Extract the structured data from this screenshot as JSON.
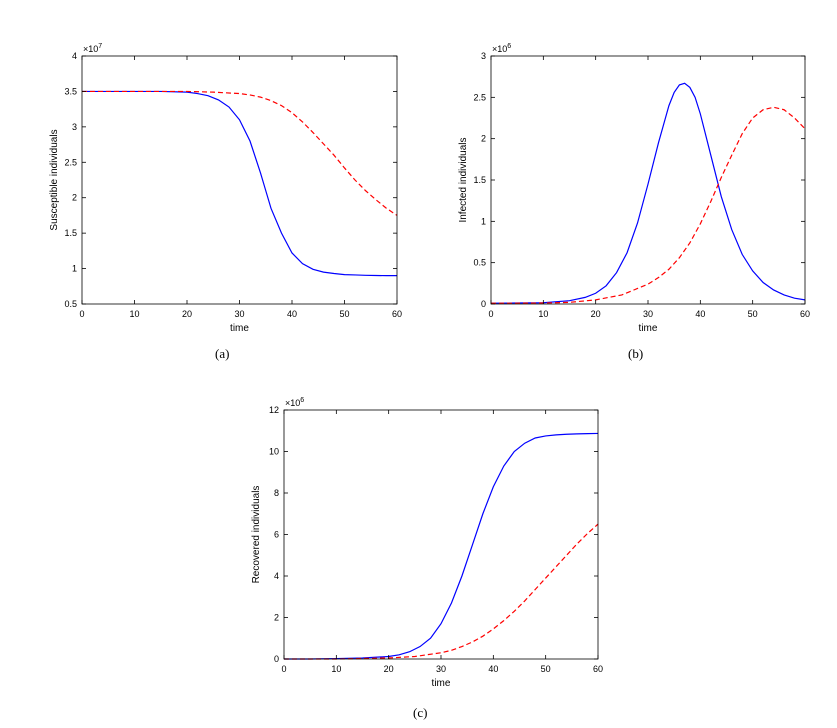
{
  "figures": [
    {
      "caption": "(a)",
      "chart_data": {
        "type": "line",
        "xlabel": "time",
        "ylabel": "Susceptible individuals",
        "exponent_label": "×10",
        "exponent": "7",
        "xlim": [
          0,
          60
        ],
        "ylim": [
          0.5,
          4
        ],
        "xticks": [
          0,
          10,
          20,
          30,
          40,
          50,
          60
        ],
        "yticks": [
          0.5,
          1,
          1.5,
          2,
          2.5,
          3,
          3.5,
          4
        ],
        "ytick_labels": [
          "0.5",
          "1",
          "1.5",
          "2",
          "2.5",
          "3",
          "3.5",
          "4"
        ],
        "grid": false,
        "series": [
          {
            "style": "solid",
            "color": "#0000ff",
            "x": [
              0,
              5,
              10,
              15,
              20,
              22,
              24,
              26,
              28,
              30,
              32,
              34,
              35,
              36,
              38,
              40,
              42,
              44,
              46,
              48,
              50,
              52,
              54,
              56,
              58,
              60
            ],
            "y": [
              3.5,
              3.5,
              3.5,
              3.5,
              3.49,
              3.47,
              3.44,
              3.38,
              3.28,
              3.1,
              2.8,
              2.35,
              2.1,
              1.85,
              1.5,
              1.22,
              1.07,
              0.99,
              0.95,
              0.93,
              0.915,
              0.91,
              0.905,
              0.902,
              0.9,
              0.9
            ]
          },
          {
            "style": "dashed",
            "color": "#ff0000",
            "x": [
              0,
              5,
              10,
              15,
              20,
              25,
              30,
              32,
              34,
              36,
              38,
              40,
              42,
              44,
              46,
              48,
              50,
              52,
              54,
              56,
              58,
              60
            ],
            "y": [
              3.5,
              3.5,
              3.5,
              3.5,
              3.5,
              3.49,
              3.47,
              3.45,
              3.42,
              3.37,
              3.3,
              3.2,
              3.07,
              2.92,
              2.76,
              2.6,
              2.42,
              2.25,
              2.1,
              1.97,
              1.85,
              1.75
            ]
          }
        ]
      }
    },
    {
      "caption": "(b)",
      "chart_data": {
        "type": "line",
        "xlabel": "time",
        "ylabel": "Infected individuals",
        "exponent_label": "×10",
        "exponent": "6",
        "xlim": [
          0,
          60
        ],
        "ylim": [
          0,
          3
        ],
        "xticks": [
          0,
          10,
          20,
          30,
          40,
          50,
          60
        ],
        "yticks": [
          0,
          0.5,
          1,
          1.5,
          2,
          2.5,
          3
        ],
        "ytick_labels": [
          "0",
          "0.5",
          "1",
          "1.5",
          "2",
          "2.5",
          "3"
        ],
        "grid": false,
        "series": [
          {
            "style": "solid",
            "color": "#0000ff",
            "x": [
              0,
              5,
              10,
              15,
              18,
              20,
              22,
              24,
              26,
              28,
              30,
              32,
              34,
              35,
              36,
              37,
              38,
              39,
              40,
              42,
              44,
              46,
              48,
              50,
              52,
              54,
              56,
              58,
              60
            ],
            "y": [
              0.01,
              0.012,
              0.015,
              0.04,
              0.08,
              0.13,
              0.22,
              0.38,
              0.62,
              0.98,
              1.45,
              1.95,
              2.4,
              2.56,
              2.65,
              2.67,
              2.62,
              2.5,
              2.3,
              1.8,
              1.3,
              0.9,
              0.6,
              0.4,
              0.26,
              0.17,
              0.11,
              0.07,
              0.05
            ]
          },
          {
            "style": "dashed",
            "color": "#ff0000",
            "x": [
              0,
              5,
              10,
              15,
              20,
              25,
              30,
              32,
              34,
              36,
              38,
              40,
              42,
              44,
              46,
              48,
              50,
              52,
              54,
              56,
              58,
              60
            ],
            "y": [
              0.01,
              0.01,
              0.012,
              0.02,
              0.05,
              0.11,
              0.24,
              0.32,
              0.42,
              0.56,
              0.74,
              0.97,
              1.24,
              1.53,
              1.8,
              2.06,
              2.25,
              2.35,
              2.38,
              2.35,
              2.25,
              2.12
            ]
          }
        ]
      }
    },
    {
      "caption": "(c)",
      "chart_data": {
        "type": "line",
        "xlabel": "time",
        "ylabel": "Recovered individuals",
        "exponent_label": "×10",
        "exponent": "6",
        "xlim": [
          0,
          60
        ],
        "ylim": [
          0,
          12
        ],
        "xticks": [
          0,
          10,
          20,
          30,
          40,
          50,
          60
        ],
        "yticks": [
          0,
          2,
          4,
          6,
          8,
          10,
          12
        ],
        "ytick_labels": [
          "0",
          "2",
          "4",
          "6",
          "8",
          "10",
          "12"
        ],
        "grid": false,
        "series": [
          {
            "style": "solid",
            "color": "#0000ff",
            "x": [
              0,
              5,
              10,
              15,
              20,
              22,
              24,
              26,
              28,
              30,
              32,
              34,
              36,
              38,
              40,
              42,
              44,
              46,
              48,
              50,
              52,
              54,
              56,
              58,
              60
            ],
            "y": [
              0,
              0,
              0.02,
              0.05,
              0.12,
              0.2,
              0.35,
              0.6,
              1.0,
              1.7,
              2.7,
              4.0,
              5.5,
              7.0,
              8.3,
              9.3,
              10.0,
              10.4,
              10.65,
              10.75,
              10.8,
              10.83,
              10.85,
              10.86,
              10.87
            ]
          },
          {
            "style": "dashed",
            "color": "#ff0000",
            "x": [
              0,
              10,
              20,
              25,
              30,
              32,
              34,
              36,
              38,
              40,
              42,
              44,
              46,
              48,
              50,
              52,
              54,
              56,
              58,
              60
            ],
            "y": [
              0,
              0,
              0.05,
              0.12,
              0.3,
              0.42,
              0.6,
              0.82,
              1.1,
              1.45,
              1.85,
              2.3,
              2.8,
              3.35,
              3.9,
              4.45,
              5.0,
              5.55,
              6.05,
              6.5
            ]
          }
        ]
      }
    }
  ]
}
